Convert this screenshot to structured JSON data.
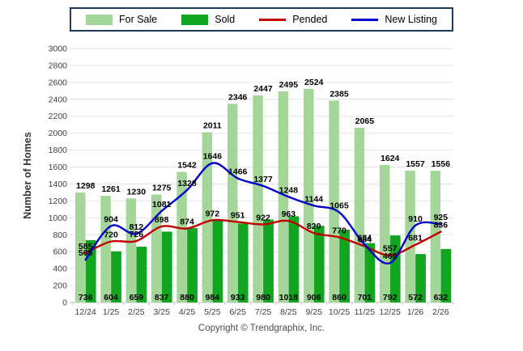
{
  "footer": {
    "copyright": "Copyright © Trendgraphix, Inc."
  },
  "colors": {
    "for_sale": "#a5d699",
    "sold": "#12a51f",
    "pended": "#c00000",
    "new_listing": "#0000d0",
    "legend_border": "#1f3a5f",
    "grid": "#e4e4e4",
    "axis_line": "#c4c4c4",
    "tick_text": "#404040",
    "value_label": "#000000"
  },
  "chart_data": {
    "type": "bar+line",
    "title": "",
    "xlabel": "",
    "ylabel": "Number of Homes",
    "ylim": [
      0,
      3000
    ],
    "ystep": 200,
    "grid": true,
    "legend_position": "top-center",
    "categories": [
      "12/24",
      "1/25",
      "2/25",
      "3/25",
      "4/25",
      "5/25",
      "6/25",
      "7/25",
      "8/25",
      "9/25",
      "10/25",
      "11/25",
      "12/25",
      "1/26",
      "2/26"
    ],
    "series": [
      {
        "name": "For Sale",
        "type": "bar",
        "color": "#a5d699",
        "values": [
          1298,
          1261,
          1230,
          1275,
          1542,
          2011,
          2346,
          2447,
          2495,
          2524,
          2385,
          2065,
          1624,
          1557,
          1556
        ]
      },
      {
        "name": "Sold",
        "type": "bar",
        "color": "#12a51f",
        "values": [
          736,
          604,
          659,
          837,
          880,
          984,
          933,
          980,
          1018,
          906,
          860,
          701,
          792,
          572,
          632
        ]
      },
      {
        "name": "Pended",
        "type": "line",
        "color": "#c00000",
        "values": [
          585,
          720,
          726,
          898,
          874,
          972,
          951,
          922,
          963,
          820,
          770,
          664,
          557,
          681,
          836
        ]
      },
      {
        "name": "New Listing",
        "type": "line",
        "color": "#0000d0",
        "values": [
          505,
          904,
          812,
          1081,
          1328,
          1646,
          1466,
          1377,
          1248,
          1144,
          1065,
          684,
          466,
          910,
          925
        ]
      }
    ]
  }
}
